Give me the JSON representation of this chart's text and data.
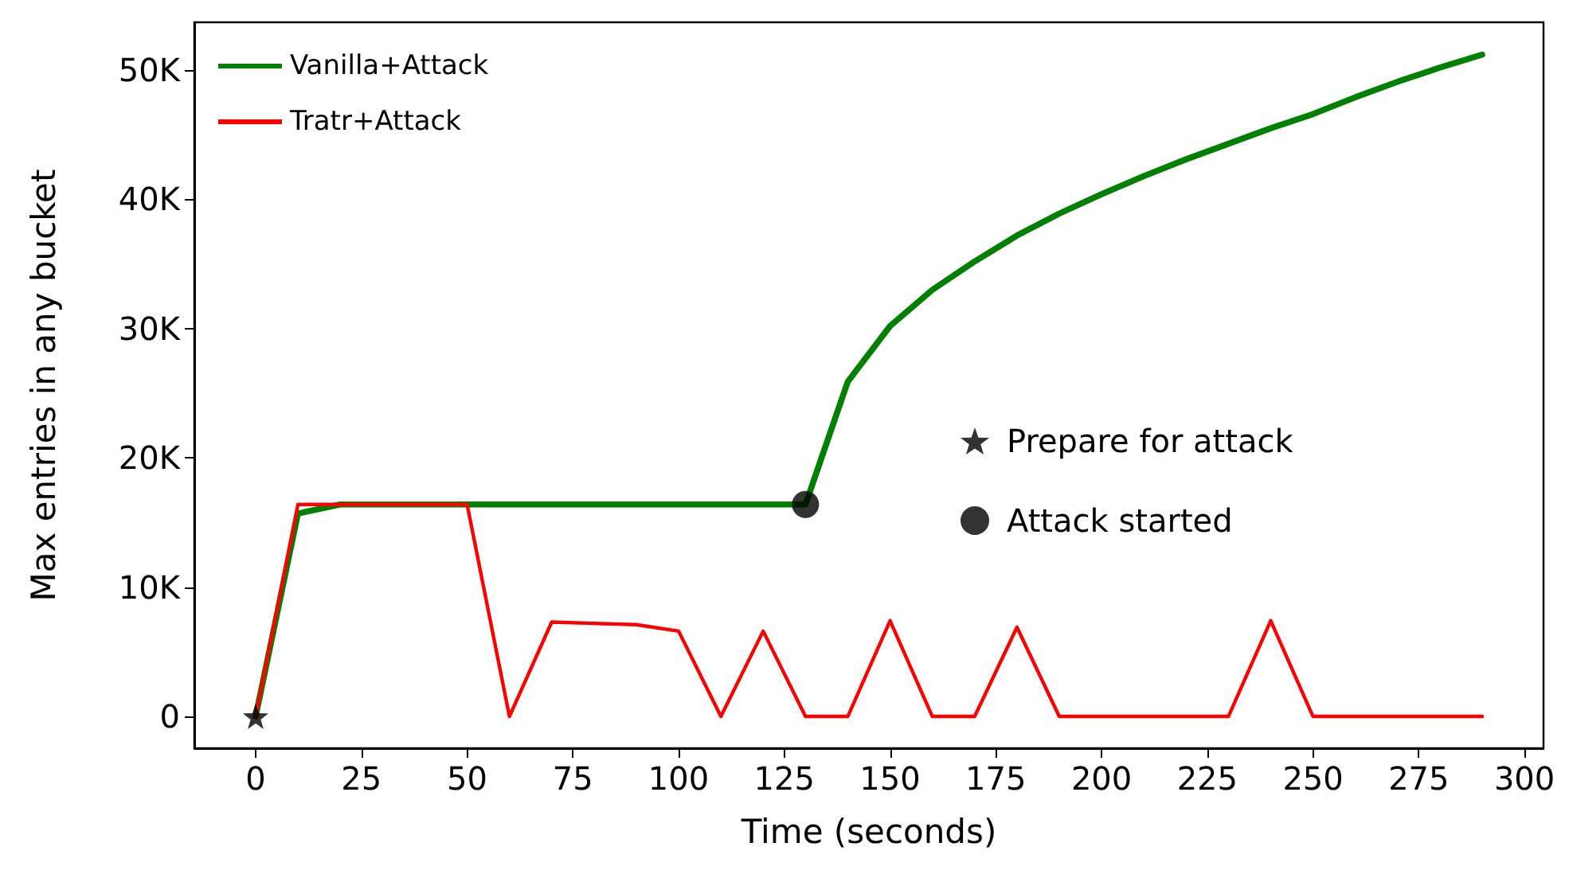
{
  "chart_data": {
    "type": "line",
    "xlabel": "Time (seconds)",
    "ylabel": "Max entries in any bucket",
    "x": [
      0,
      10,
      20,
      30,
      40,
      50,
      60,
      70,
      80,
      90,
      100,
      110,
      120,
      130,
      140,
      150,
      160,
      170,
      180,
      190,
      200,
      210,
      220,
      230,
      240,
      250,
      260,
      270,
      280,
      290
    ],
    "series": [
      {
        "name": "Vanilla+Attack",
        "color": "#008000",
        "values": [
          0,
          15700,
          16400,
          16400,
          16400,
          16400,
          16400,
          16400,
          16400,
          16400,
          16400,
          16400,
          16400,
          16400,
          25900,
          30200,
          33000,
          35200,
          37200,
          38900,
          40400,
          41800,
          43100,
          44300,
          45500,
          46600,
          47900,
          49100,
          50200,
          51200
        ]
      },
      {
        "name": "Tratr+Attack",
        "color": "#ff0000",
        "values": [
          0,
          16400,
          16400,
          16400,
          16400,
          16400,
          0,
          7300,
          7200,
          7100,
          6600,
          0,
          6600,
          0,
          0,
          7400,
          0,
          0,
          6900,
          0,
          0,
          0,
          0,
          0,
          7400,
          0,
          0,
          0,
          0,
          0
        ]
      },
      {
        "name": "Prepare for attack",
        "type": "scatter",
        "marker": "star",
        "color": "#000000",
        "x": [
          0
        ],
        "values": [
          0
        ]
      },
      {
        "name": "Attack started",
        "type": "scatter",
        "marker": "circle",
        "color": "#000000",
        "x": [
          130
        ],
        "values": [
          16400
        ]
      }
    ],
    "xlim": [
      -14.5,
      304.5
    ],
    "xticks": [
      0,
      25,
      50,
      75,
      100,
      125,
      150,
      175,
      200,
      225,
      250,
      275,
      300
    ],
    "ylim": [
      -2460,
      53700
    ],
    "yticks": [
      {
        "value": 0,
        "label": "0"
      },
      {
        "value": 10000,
        "label": "10K"
      },
      {
        "value": 20000,
        "label": "20K"
      },
      {
        "value": 30000,
        "label": "30K"
      },
      {
        "value": 40000,
        "label": "40K"
      },
      {
        "value": 50000,
        "label": "50K"
      }
    ],
    "legend": "top left",
    "marker": "none",
    "line_style": "solid",
    "grid": false
  }
}
